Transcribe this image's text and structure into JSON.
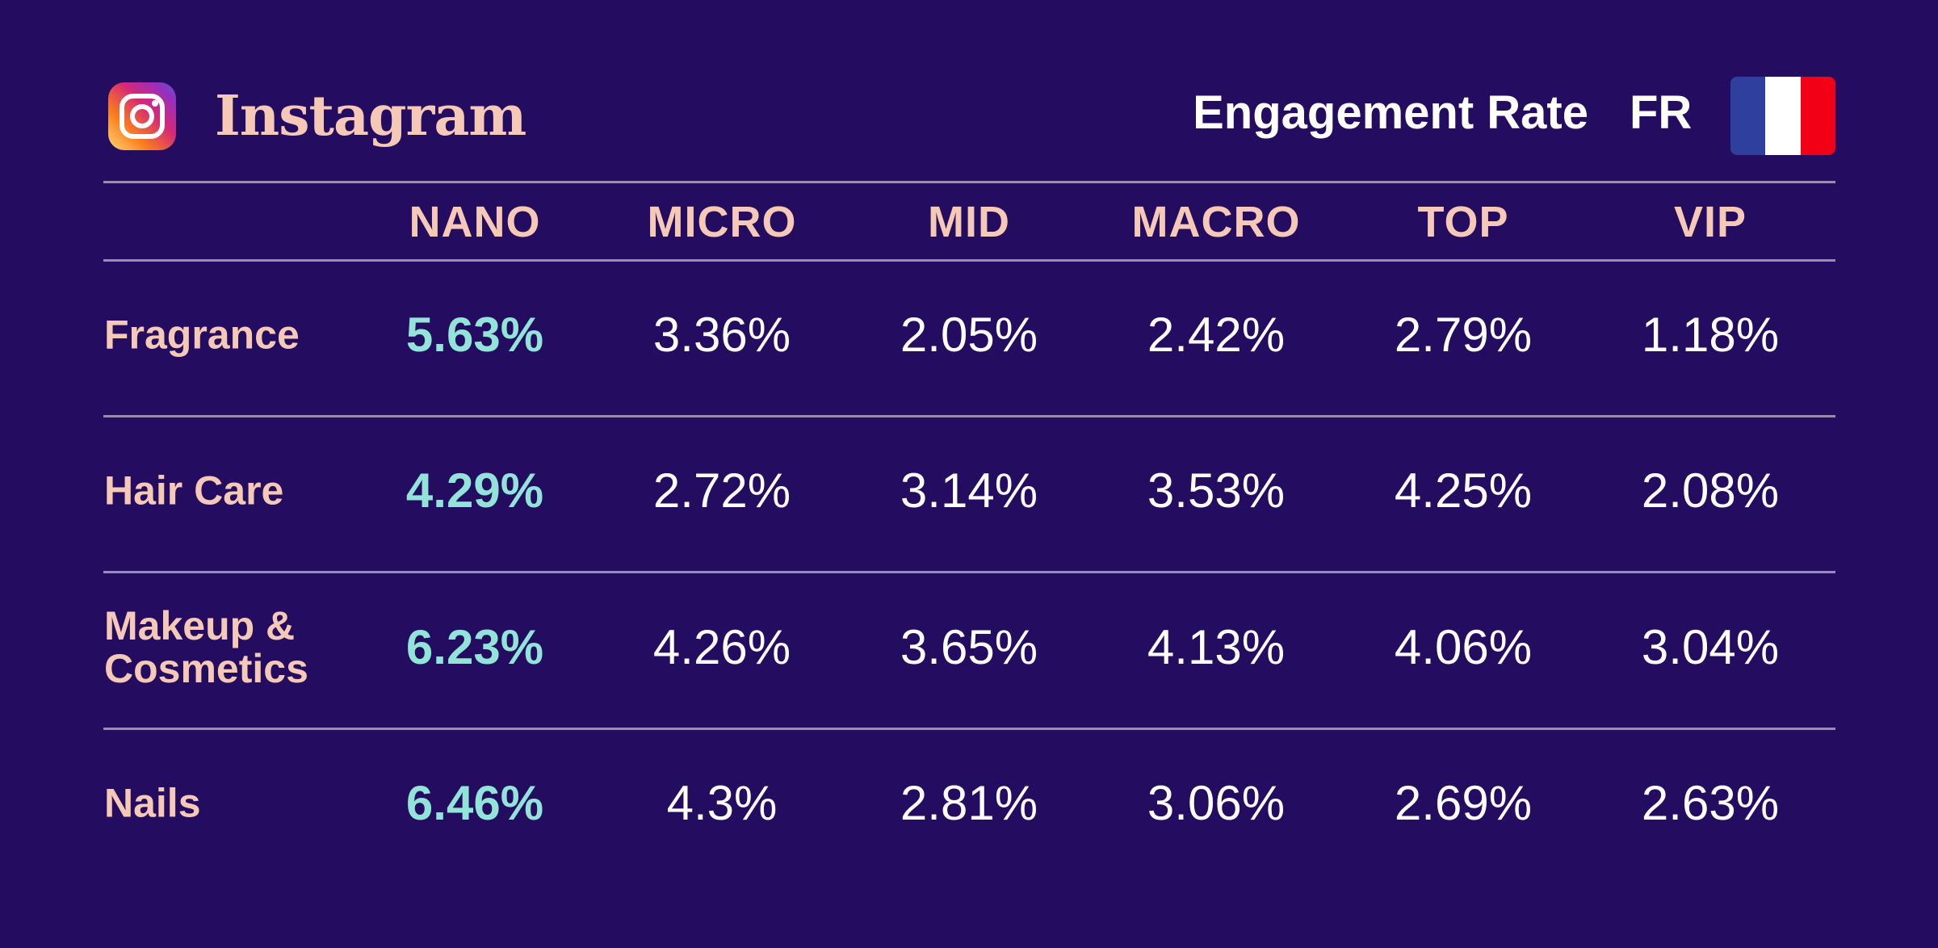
{
  "header": {
    "brand": "Instagram",
    "metric": "Engagement Rate",
    "country": "FR",
    "icons": {
      "logo": "instagram-logo-icon",
      "flag": "france-flag-icon"
    }
  },
  "colors": {
    "background": "#240d60",
    "label": "#f6c9b6",
    "value": "#ffffff",
    "highlight": "#92e3d8",
    "flag_blue": "#2f3f9e",
    "flag_white": "#ffffff",
    "flag_red": "#f20016"
  },
  "chart_data": {
    "type": "table",
    "columns": [
      "NANO",
      "MICRO",
      "MID",
      "MACRO",
      "TOP",
      "VIP"
    ],
    "highlight_column": "NANO",
    "rows": [
      {
        "label": "Fragrance",
        "values": [
          "5.63%",
          "3.36%",
          "2.05%",
          "2.42%",
          "2.79%",
          "1.18%"
        ]
      },
      {
        "label": "Hair Care",
        "values": [
          "4.29%",
          "2.72%",
          "3.14%",
          "3.53%",
          "4.25%",
          "2.08%"
        ]
      },
      {
        "label": "Makeup & Cosmetics",
        "values": [
          "6.23%",
          "4.26%",
          "3.65%",
          "4.13%",
          "4.06%",
          "3.04%"
        ]
      },
      {
        "label": "Nails",
        "values": [
          "6.46%",
          "4.3%",
          "2.81%",
          "3.06%",
          "2.69%",
          "2.63%"
        ]
      }
    ]
  }
}
